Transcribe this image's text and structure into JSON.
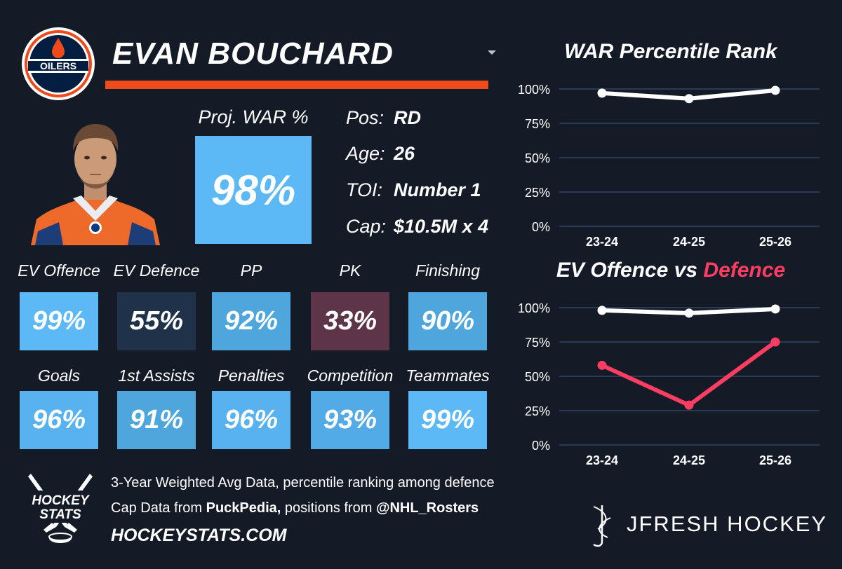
{
  "header": {
    "player_name": "EVAN BOUCHARD",
    "team_logo_text": "OILERS",
    "proj_war_label": "Proj. WAR %",
    "proj_war_value": "98%"
  },
  "info": [
    {
      "label": "Pos:",
      "value": "RD"
    },
    {
      "label": "Age:",
      "value": "26"
    },
    {
      "label": "TOI:",
      "value": "Number 1"
    },
    {
      "label": "Cap:",
      "value": "$10.5M x 4"
    }
  ],
  "metrics": [
    {
      "label": "EV Offence",
      "value": "99%",
      "color": "#5cb9f5"
    },
    {
      "label": "EV Defence",
      "value": "55%",
      "color": "#20324a"
    },
    {
      "label": "PP",
      "value": "92%",
      "color": "#4fa6dc"
    },
    {
      "label": "PK",
      "value": "33%",
      "color": "#5e3548"
    },
    {
      "label": "Finishing",
      "value": "90%",
      "color": "#4fa6dc"
    },
    {
      "label": "Goals",
      "value": "96%",
      "color": "#57b2ef"
    },
    {
      "label": "1st Assists",
      "value": "91%",
      "color": "#4fa6dc"
    },
    {
      "label": "Penalties",
      "value": "96%",
      "color": "#57b2ef"
    },
    {
      "label": "Competition",
      "value": "93%",
      "color": "#52abe6"
    },
    {
      "label": "Teammates",
      "value": "99%",
      "color": "#5cb9f5"
    }
  ],
  "footer": {
    "logo_line1": "HOCKEY",
    "logo_line2": "STATS",
    "line1": "3-Year Weighted Avg Data, percentile ranking among defence",
    "line2_prefix": "Cap Data from ",
    "line2_source": "PuckPedia,",
    "line2_middle": " positions from ",
    "line2_handle": "@NHL_Rosters",
    "site": "HOCKEYSTATS.COM",
    "brand": "JFRESH HOCKEY"
  },
  "colors": {
    "background": "#141b27",
    "accent_orange": "#ee4a1b",
    "war_blue": "#5cb9f5",
    "defence_red": "#fe3d63",
    "grid": "#2e4565"
  },
  "chart_data": [
    {
      "type": "line",
      "title": "WAR Percentile Rank",
      "categories": [
        "23-24",
        "24-25",
        "25-26"
      ],
      "yticks": [
        "0%",
        "25%",
        "50%",
        "75%",
        "100%"
      ],
      "ylim": [
        0,
        100
      ],
      "grid": true,
      "series": [
        {
          "values": [
            97,
            93,
            99
          ],
          "color": "#ffffff"
        }
      ]
    },
    {
      "type": "line",
      "title_part1": "EV Offence vs ",
      "title_part2": "Defence",
      "categories": [
        "23-24",
        "24-25",
        "25-26"
      ],
      "yticks": [
        "0%",
        "25%",
        "50%",
        "75%",
        "100%"
      ],
      "ylim": [
        0,
        100
      ],
      "grid": true,
      "series": [
        {
          "values": [
            98,
            96,
            99
          ],
          "color": "#ffffff"
        },
        {
          "values": [
            58,
            29,
            75
          ],
          "color": "#fe3d63"
        }
      ]
    }
  ]
}
